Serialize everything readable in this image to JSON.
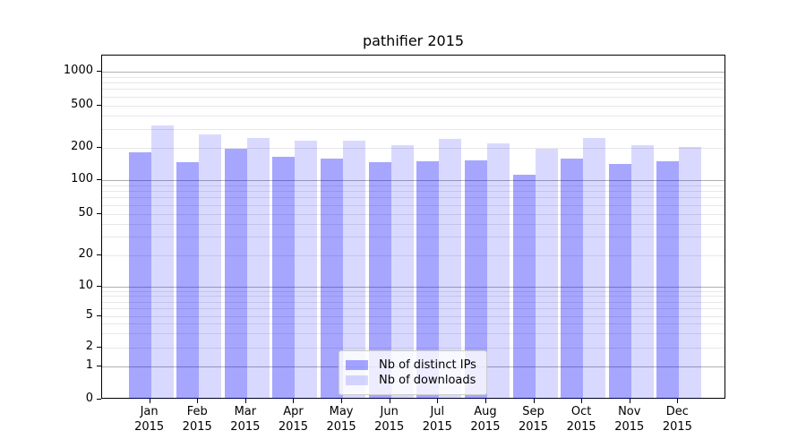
{
  "title": "pathifier 2015",
  "chart_data": {
    "type": "bar",
    "title": "pathifier 2015",
    "xlabel": "",
    "ylabel": "",
    "y_scale": "symlog",
    "ylim": [
      0,
      1400
    ],
    "grid": true,
    "legend_position": "lower center",
    "months": [
      "Jan",
      "Feb",
      "Mar",
      "Apr",
      "May",
      "Jun",
      "Jul",
      "Aug",
      "Sep",
      "Oct",
      "Nov",
      "Dec"
    ],
    "year_label": "2015",
    "y_ticks": [
      0,
      1,
      2,
      5,
      10,
      20,
      50,
      100,
      200,
      500,
      1000
    ],
    "series": [
      {
        "name": "Nb of distinct IPs",
        "color": "#a6a6fa",
        "values": [
          180,
          147,
          195,
          164,
          160,
          147,
          150,
          152,
          112,
          159,
          141,
          151
        ]
      },
      {
        "name": "Nb of downloads",
        "color": "#d9d9fa",
        "values": [
          324,
          268,
          246,
          233,
          232,
          212,
          243,
          222,
          198,
          249,
          211,
          205
        ]
      }
    ]
  }
}
